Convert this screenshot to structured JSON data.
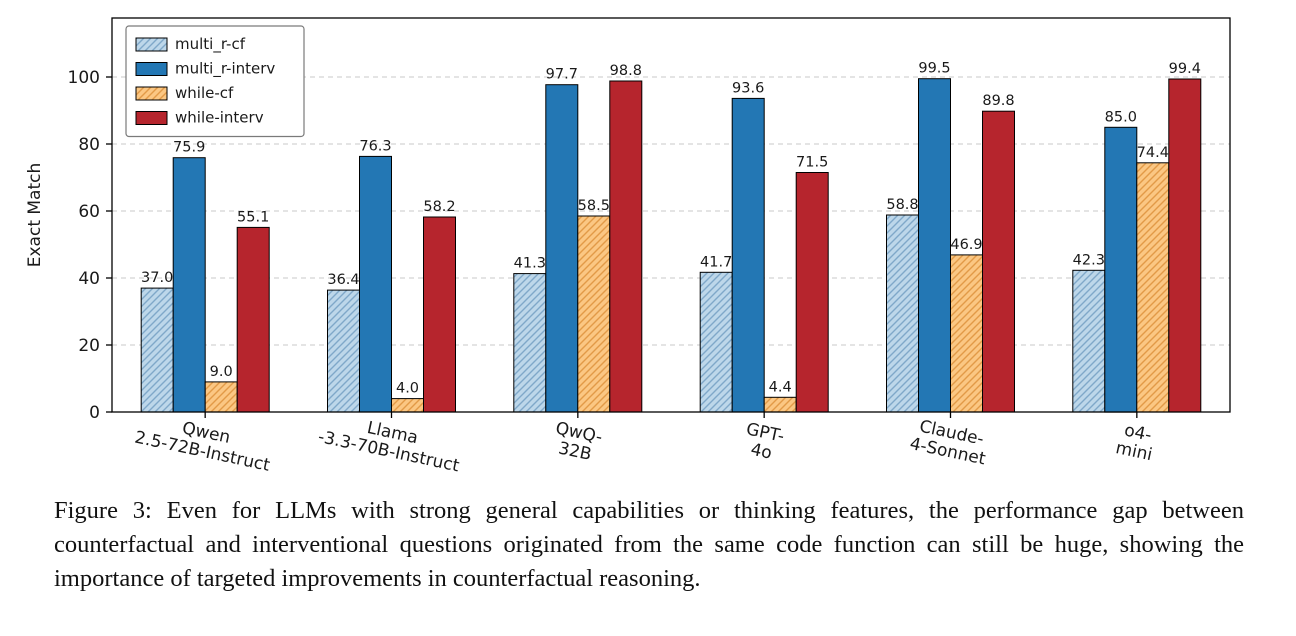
{
  "figure": {
    "caption": "Figure 3: Even for LLMs with strong general capabilities or thinking features, the performance gap between counterfactual and interventional questions originated from the same code function can still be huge, showing the importance of targeted improvements in counterfactual reasoning."
  },
  "chart_data": {
    "type": "bar",
    "title": "",
    "xlabel": "",
    "ylabel": "Exact Match",
    "ylim": [
      0,
      117
    ],
    "yticks": [
      0,
      20,
      40,
      60,
      80,
      100
    ],
    "grid": "horizontal-dashed",
    "grid_color": "#c8c8c8",
    "legend_position": "upper-left",
    "bar_edge_color": "#000000",
    "categories": [
      [
        "Qwen",
        "2.5-72B-Instruct"
      ],
      [
        "Llama",
        "-3.3-70B-Instruct"
      ],
      [
        "QwQ-",
        "32B"
      ],
      [
        "GPT-",
        "4o"
      ],
      [
        "Claude-",
        "4-Sonnet"
      ],
      [
        "o4-",
        "mini"
      ]
    ],
    "series": [
      {
        "name": "multi_r-cf",
        "color": "#bdd7ea",
        "hatch": true,
        "hatch_color": "#7fa8c9",
        "values": [
          37.0,
          36.4,
          41.3,
          41.7,
          58.8,
          42.3
        ]
      },
      {
        "name": "multi_r-interv",
        "color": "#2377b4",
        "hatch": false,
        "hatch_color": "",
        "values": [
          75.9,
          76.3,
          97.7,
          93.6,
          99.5,
          85.0
        ]
      },
      {
        "name": "while-cf",
        "color": "#fbc783",
        "hatch": true,
        "hatch_color": "#e29a47",
        "values": [
          9.0,
          4.0,
          58.5,
          4.4,
          46.9,
          74.4
        ]
      },
      {
        "name": "while-interv",
        "color": "#b6252d",
        "hatch": false,
        "hatch_color": "",
        "values": [
          55.1,
          58.2,
          98.8,
          71.5,
          89.8,
          99.4
        ]
      }
    ]
  }
}
